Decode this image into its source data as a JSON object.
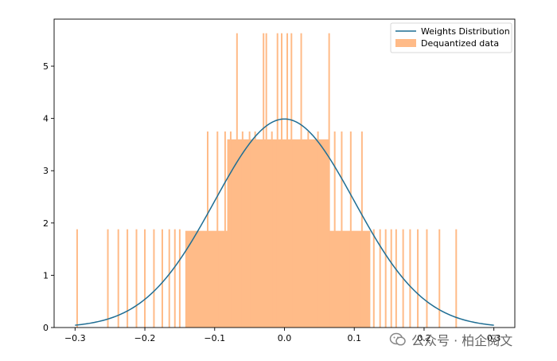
{
  "chart_data": {
    "type": "bar",
    "title": "",
    "xlabel": "",
    "ylabel": "",
    "xlim": [
      -0.33,
      0.33
    ],
    "ylim": [
      0,
      5.9
    ],
    "xticks": [
      -0.3,
      -0.2,
      -0.1,
      0.0,
      0.1,
      0.2,
      0.3
    ],
    "xtick_labels": [
      "−0.3",
      "−0.2",
      "−0.1",
      "0.0",
      "0.1",
      "0.2",
      "0.3"
    ],
    "yticks": [
      0,
      1,
      2,
      3,
      4,
      5
    ],
    "ytick_labels": [
      "0",
      "1",
      "2",
      "3",
      "4",
      "5"
    ],
    "grid": false,
    "legend_position": "top-right",
    "series": [
      {
        "name": "Weights Distribution",
        "kind": "line",
        "color": "#1f6e94",
        "function": "normal_pdf",
        "mean": 0.0,
        "std": 0.1,
        "x_range": [
          -0.3,
          0.3
        ]
      },
      {
        "name": "Dequantized data",
        "kind": "histogram",
        "color": "#ffbb88",
        "bins": [
          {
            "x": -0.297,
            "h": 1.88
          },
          {
            "x": -0.253,
            "h": 1.88
          },
          {
            "x": -0.238,
            "h": 1.88
          },
          {
            "x": -0.225,
            "h": 1.88
          },
          {
            "x": -0.212,
            "h": 1.88
          },
          {
            "x": -0.2,
            "h": 1.88
          },
          {
            "x": -0.187,
            "h": 1.88
          },
          {
            "x": -0.175,
            "h": 1.88
          },
          {
            "x": -0.165,
            "h": 1.88
          },
          {
            "x": -0.157,
            "h": 1.88
          },
          {
            "x": -0.15,
            "h": 1.88
          },
          {
            "x": -0.11,
            "h": 3.75
          },
          {
            "x": -0.096,
            "h": 3.75
          },
          {
            "x": -0.085,
            "h": 3.75
          },
          {
            "x": -0.077,
            "h": 3.75
          },
          {
            "x": -0.068,
            "h": 5.63
          },
          {
            "x": -0.06,
            "h": 3.75
          },
          {
            "x": -0.05,
            "h": 3.75
          },
          {
            "x": -0.042,
            "h": 3.75
          },
          {
            "x": -0.03,
            "h": 5.63
          },
          {
            "x": -0.026,
            "h": 5.63
          },
          {
            "x": -0.018,
            "h": 3.75
          },
          {
            "x": -0.01,
            "h": 5.63
          },
          {
            "x": -0.004,
            "h": 5.63
          },
          {
            "x": 0.004,
            "h": 5.63
          },
          {
            "x": 0.01,
            "h": 5.63
          },
          {
            "x": 0.024,
            "h": 5.63
          },
          {
            "x": 0.034,
            "h": 3.75
          },
          {
            "x": 0.048,
            "h": 3.75
          },
          {
            "x": 0.064,
            "h": 5.63
          },
          {
            "x": 0.072,
            "h": 3.75
          },
          {
            "x": 0.082,
            "h": 3.75
          },
          {
            "x": 0.095,
            "h": 3.75
          },
          {
            "x": 0.111,
            "h": 3.75
          },
          {
            "x": 0.128,
            "h": 1.88
          },
          {
            "x": 0.137,
            "h": 1.88
          },
          {
            "x": 0.145,
            "h": 1.88
          },
          {
            "x": 0.153,
            "h": 1.88
          },
          {
            "x": 0.16,
            "h": 1.88
          },
          {
            "x": 0.17,
            "h": 1.88
          },
          {
            "x": 0.18,
            "h": 1.88
          },
          {
            "x": 0.191,
            "h": 1.88
          },
          {
            "x": 0.204,
            "h": 1.88
          },
          {
            "x": 0.222,
            "h": 1.88
          },
          {
            "x": 0.246,
            "h": 1.88
          }
        ],
        "blocks": [
          {
            "x0": -0.142,
            "x1": 0.123,
            "h": 1.85
          },
          {
            "x0": -0.082,
            "x1": 0.064,
            "h": 3.6
          }
        ]
      }
    ]
  },
  "watermark": {
    "text": "公众号 · 柏企阅文"
  }
}
